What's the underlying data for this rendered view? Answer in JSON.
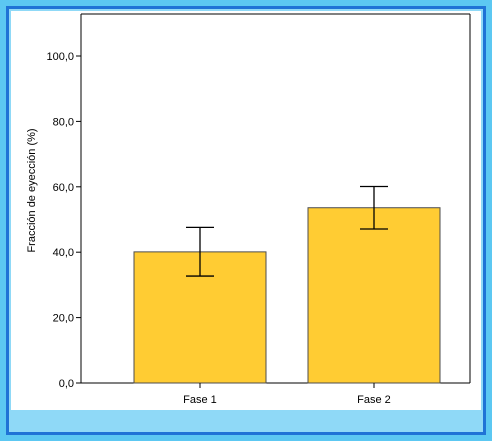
{
  "chart_data": {
    "type": "bar",
    "categories": [
      "Fase 1",
      "Fase 2"
    ],
    "values": [
      40.1,
      53.6
    ],
    "error_bars": [
      {
        "low": 32.7,
        "high": 47.6
      },
      {
        "low": 47.1,
        "high": 60.1
      }
    ],
    "ylabel": "Fracción de eyección (%)",
    "xlabel": "",
    "ylim": [
      0,
      110
    ],
    "yticks": [
      0,
      20,
      40,
      60,
      80,
      100
    ],
    "ytick_labels": [
      "0,0",
      "20,0",
      "40,0",
      "60,0",
      "80,0",
      "100,0"
    ],
    "bar_color": "#ffcc33",
    "bar_edge_color": "#4d4d4d",
    "frame_color": "#5cc8f2",
    "border_color": "#1f73d6"
  }
}
